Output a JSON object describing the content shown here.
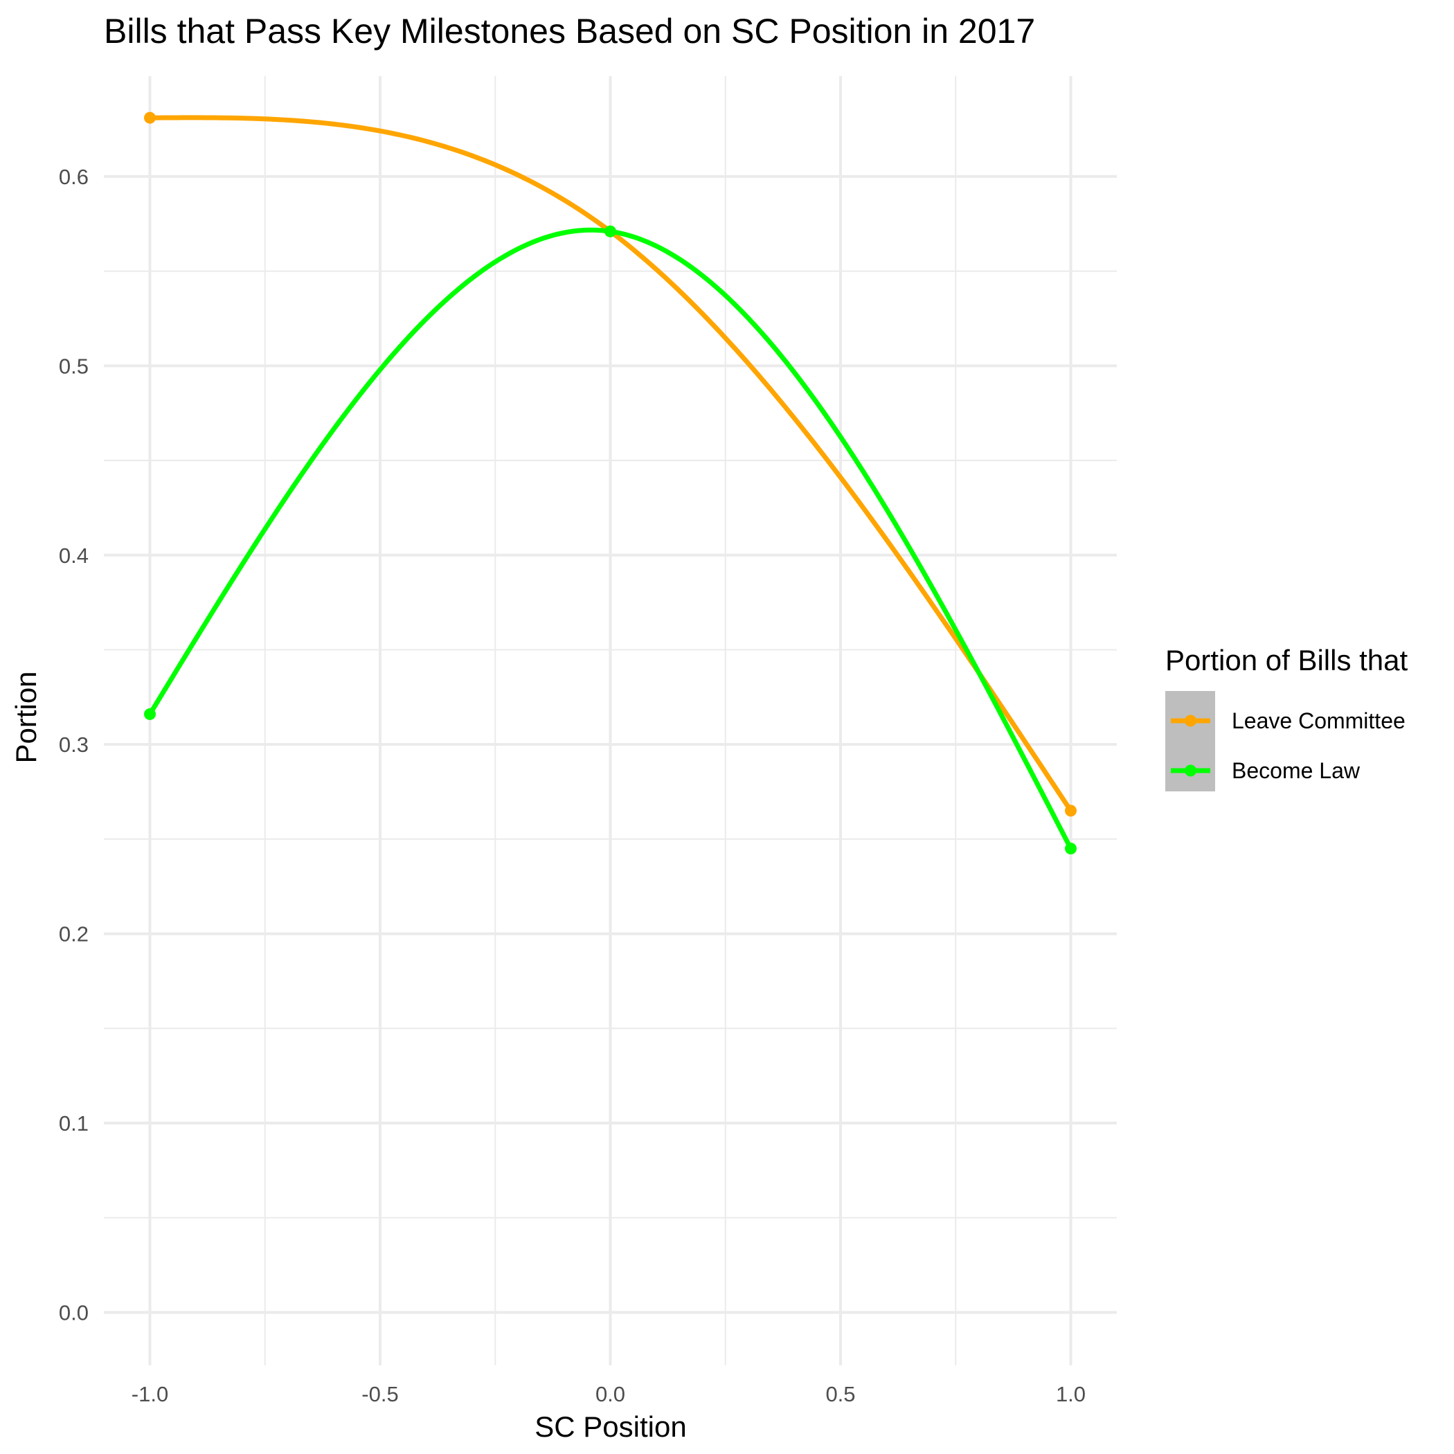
{
  "chart_data": {
    "type": "line",
    "title": "Bills that Pass Key Milestones Based on SC Position in 2017",
    "xlabel": "SC Position",
    "ylabel": "Portion",
    "xlim": [
      -1.1,
      1.1
    ],
    "ylim": [
      -0.028,
      0.653
    ],
    "x_ticks": [
      "-1.0",
      "-0.5",
      "0.0",
      "0.5",
      "1.0"
    ],
    "x_tick_values": [
      -1.0,
      -0.5,
      0.0,
      0.5,
      1.0
    ],
    "y_ticks": [
      "0.0",
      "0.1",
      "0.2",
      "0.3",
      "0.4",
      "0.5",
      "0.6"
    ],
    "y_tick_values": [
      0.0,
      0.1,
      0.2,
      0.3,
      0.4,
      0.5,
      0.6
    ],
    "grid": true,
    "legend": {
      "title": "Portion of Bills that",
      "position": "right"
    },
    "x": [
      -1.0,
      0.0,
      1.0
    ],
    "series": [
      {
        "name": "Leave Committee",
        "color": "#FFA500",
        "values": [
          0.631,
          0.571,
          0.265
        ]
      },
      {
        "name": "Become Law",
        "color": "#00FF00",
        "values": [
          0.316,
          0.571,
          0.245
        ]
      }
    ]
  }
}
